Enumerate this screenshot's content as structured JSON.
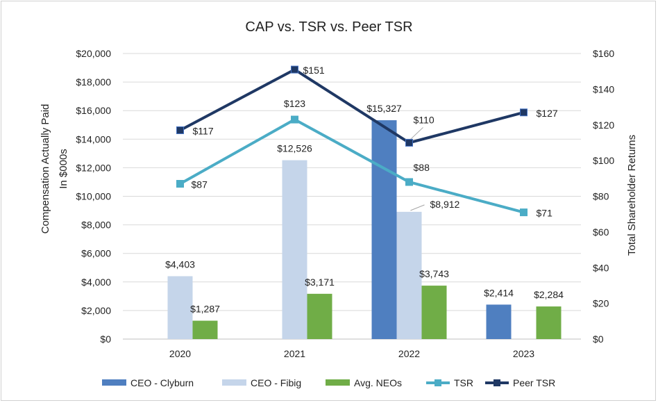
{
  "chart_data": {
    "type": "bar",
    "title": "CAP vs. TSR vs. Peer TSR",
    "ylabel": "Compensation Actually Paid\nIn $000s",
    "y2label": "Total Shareholder Returns",
    "ylim": [
      0,
      20000
    ],
    "y2lim": [
      0,
      160
    ],
    "yticks": [
      "$0",
      "$2,000",
      "$4,000",
      "$6,000",
      "$8,000",
      "$10,000",
      "$12,000",
      "$14,000",
      "$16,000",
      "$18,000",
      "$20,000"
    ],
    "y2ticks": [
      "$0",
      "$20",
      "$40",
      "$60",
      "$80",
      "$100",
      "$120",
      "$140",
      "$160"
    ],
    "categories": [
      "2020",
      "2021",
      "2022",
      "2023"
    ],
    "bar_series": [
      {
        "name": "CEO - Clyburn",
        "color": "#4f7fc0",
        "values": [
          null,
          null,
          15327,
          2414
        ],
        "labels": [
          null,
          null,
          "$15,327",
          "$2,414"
        ]
      },
      {
        "name": "CEO - Fibig",
        "color": "#c5d5ea",
        "values": [
          4403,
          12526,
          8912,
          null
        ],
        "labels": [
          "$4,403",
          "$12,526",
          "$8,912",
          null
        ]
      },
      {
        "name": "Avg. NEOs",
        "color": "#70ad47",
        "values": [
          1287,
          3171,
          3743,
          2284
        ],
        "labels": [
          "$1,287",
          "$3,171",
          "$3,743",
          "$2,284"
        ]
      }
    ],
    "line_series": [
      {
        "name": "TSR",
        "color": "#4bacc6",
        "axis": "right",
        "values": [
          87,
          123,
          88,
          71
        ],
        "labels": [
          "$87",
          "$123",
          "$88",
          "$71"
        ]
      },
      {
        "name": "Peer TSR",
        "color": "#1f3864",
        "axis": "right",
        "values": [
          117,
          151,
          110,
          127
        ],
        "labels": [
          "$117",
          "$151",
          "$110",
          "$127"
        ]
      }
    ],
    "grid": true,
    "legend": "bottom"
  }
}
